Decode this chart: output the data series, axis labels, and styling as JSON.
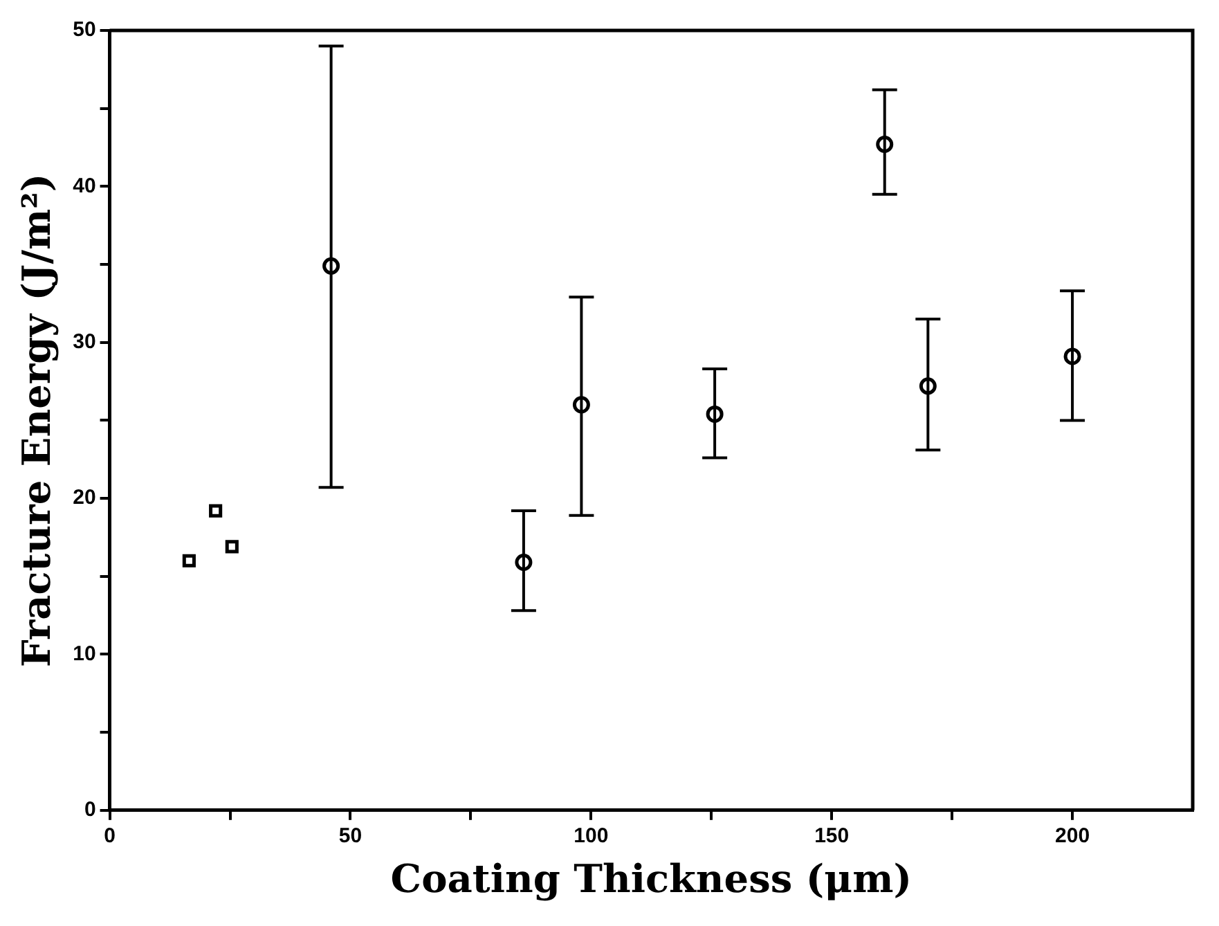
{
  "chart_data": {
    "type": "scatter",
    "xlabel": "Coating Thickness (μm)",
    "ylabel": "Fracture Energy (J/m²)",
    "xlim": [
      0,
      225
    ],
    "xticks": [
      0,
      {
        "value": 25,
        "label": null
      },
      50,
      {
        "value": 75,
        "label": null
      },
      100,
      {
        "value": 125,
        "label": null
      },
      150,
      {
        "value": 175,
        "label": null
      },
      200
    ],
    "ylim": [
      0,
      50
    ],
    "yticks": [
      0,
      {
        "value": 5,
        "label": null
      },
      10,
      {
        "value": 15,
        "label": null
      },
      20,
      {
        "value": 25,
        "label": null
      },
      30,
      {
        "value": 35,
        "label": null
      },
      40,
      {
        "value": 45,
        "label": null
      },
      50
    ],
    "grid": false,
    "legend": false,
    "series": [
      {
        "color": "#000000",
        "marker": "square",
        "x": [
          16.5,
          22,
          25.4
        ],
        "values": [
          16.0,
          19.2,
          16.9
        ]
      },
      {
        "color": "#000000",
        "marker": "circle",
        "x": [
          46,
          86,
          98,
          125.7,
          161,
          170,
          200
        ],
        "values": [
          34.9,
          15.9,
          26.0,
          25.4,
          42.7,
          27.2,
          29.1
        ],
        "errors": [
          [
            20.7,
            49.0
          ],
          [
            12.8,
            19.2
          ],
          [
            18.9,
            32.9
          ],
          [
            22.6,
            28.3
          ],
          [
            39.5,
            46.2
          ],
          [
            23.1,
            31.5
          ],
          [
            25.0,
            33.3
          ]
        ]
      }
    ]
  }
}
